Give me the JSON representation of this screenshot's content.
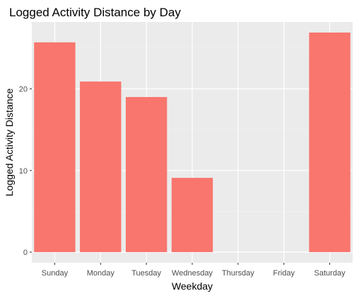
{
  "chart_data": {
    "type": "bar",
    "title": "Logged Activity Distance by Day",
    "xlabel": "Weekday",
    "ylabel": "Logged Activity Distance",
    "categories": [
      "Sunday",
      "Monday",
      "Tuesday",
      "Wednesday",
      "Thursday",
      "Friday",
      "Saturday"
    ],
    "values": [
      25.7,
      20.9,
      19.0,
      9.1,
      0,
      0,
      26.9
    ],
    "ylim": [
      -1.3,
      28.2
    ],
    "yticks": [
      0,
      10,
      20
    ],
    "ytick_labels": [
      "0",
      "10",
      "20"
    ],
    "grid": true,
    "legend": "none",
    "colors": {
      "bar": "#F8766D",
      "panel_background": "#EBEBEB",
      "grid_major": "#FFFFFF",
      "grid_minor": "#F5F5F5"
    }
  }
}
